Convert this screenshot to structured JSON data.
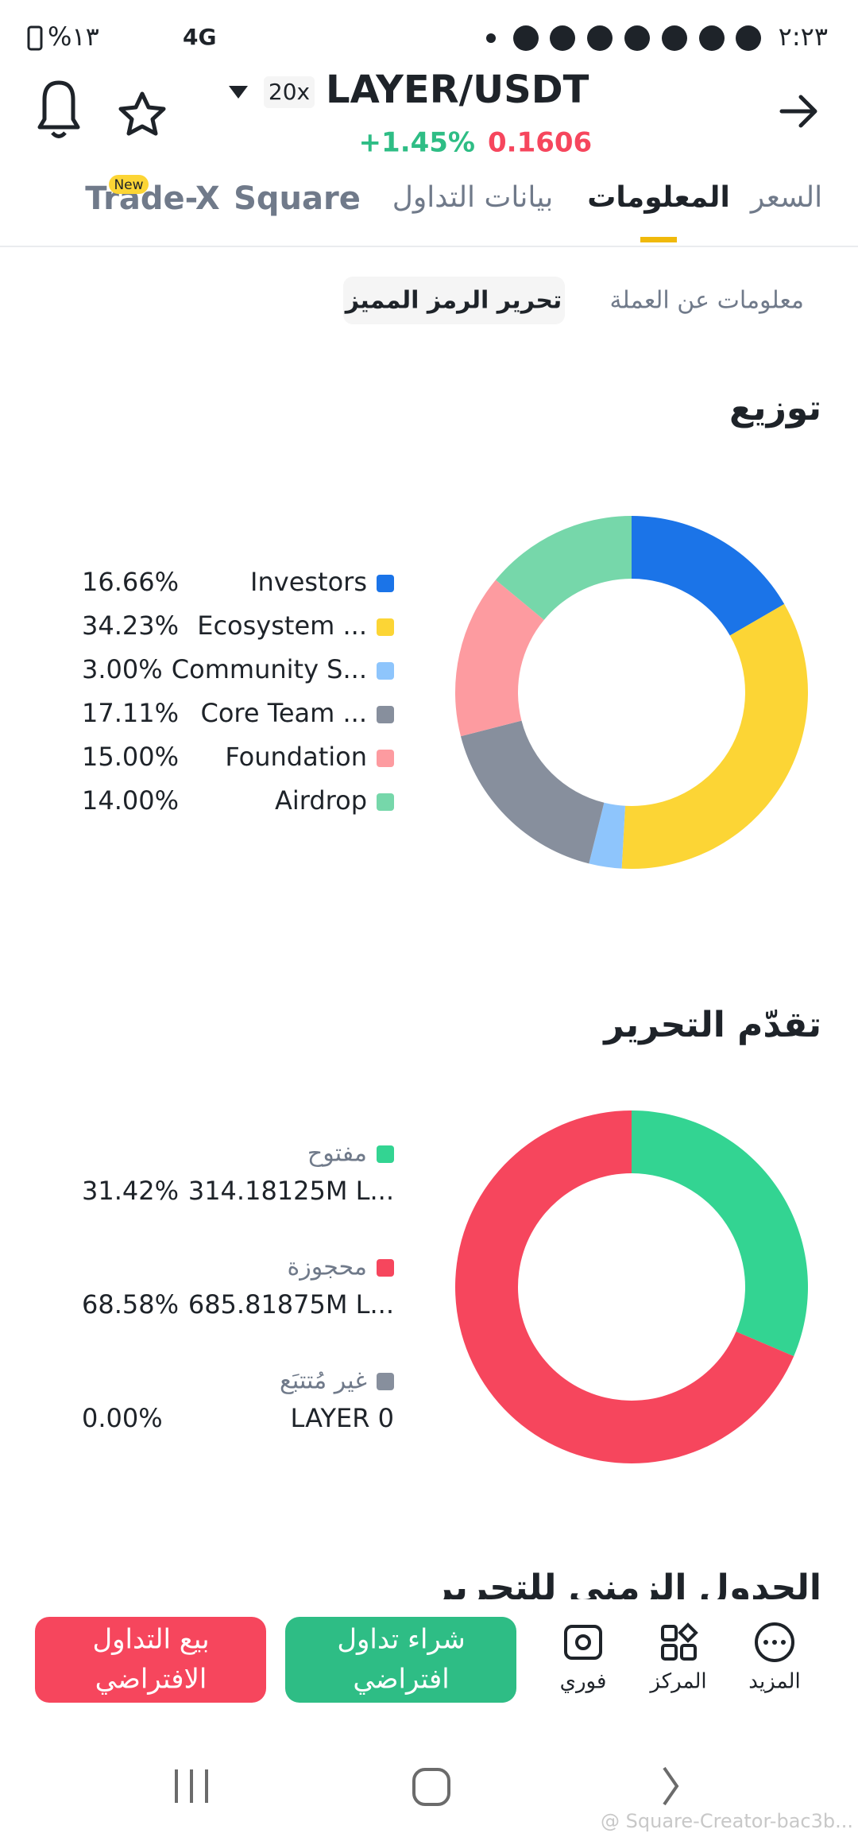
{
  "status_bar": {
    "time": "٢:٢٣",
    "battery": "%١٣",
    "network": "4G"
  },
  "header": {
    "leverage": "20x",
    "pair": "LAYER/USDT",
    "change": "+1.45%",
    "price": "0.1606"
  },
  "tabs": {
    "items": [
      "السعر",
      "المعلومات",
      "بيانات التداول",
      "Square",
      "Trade-X"
    ],
    "active": 1,
    "badge": "New"
  },
  "subtabs": {
    "items": [
      "معلومات عن العملة",
      "تحرير الرمز المميز"
    ],
    "active": 1
  },
  "distribution": {
    "type": "pie",
    "title": "توزيع",
    "categories": [
      "Investors",
      "Ecosystem ...",
      "Community S...",
      "Core Team ...",
      "Foundation",
      "Airdrop"
    ],
    "values": [
      16.66,
      34.23,
      3.0,
      17.11,
      15.0,
      14.0
    ],
    "value_labels": [
      "16.66%",
      "34.23%",
      "3.00%",
      "17.11%",
      "15.00%",
      "14.00%"
    ],
    "colors": [
      "#1b74e8",
      "#fcd535",
      "#8ec5fc",
      "#878f9d",
      "#fd9ba0",
      "#76d7aa"
    ]
  },
  "unlock": {
    "type": "pie",
    "title": "تقدّم التحرير",
    "categories": [
      "مفتوح",
      "محجوزة",
      "غير مُتتبَع"
    ],
    "amounts": [
      "314.18125M L...",
      "685.81875M L...",
      "LAYER 0"
    ],
    "values": [
      31.42,
      68.58,
      0.0
    ],
    "value_labels": [
      "31.42%",
      "68.58%",
      "0.00%"
    ],
    "colors": [
      "#33d492",
      "#f6465d",
      "#878f9d"
    ]
  },
  "schedule": {
    "title": "الجدول الزمني للتحرير"
  },
  "bottom_bar": {
    "sell": [
      "بيع التداول",
      "الافتراضي"
    ],
    "buy": [
      "شراء تداول",
      "افتراضي"
    ],
    "actions": [
      "فوري",
      "المركز",
      "المزيد"
    ]
  },
  "watermark": "@ Square-Creator-bac3b..."
}
